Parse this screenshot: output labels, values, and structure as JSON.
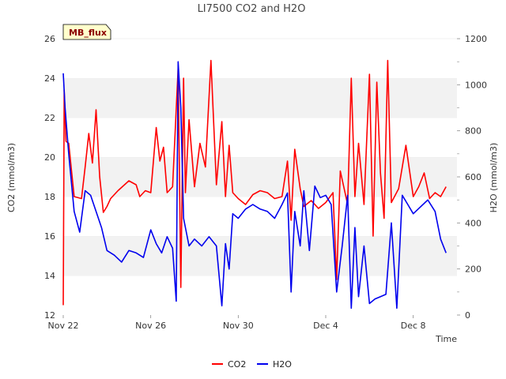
{
  "chart_data": {
    "type": "line",
    "title": "LI7500 CO2 and H2O",
    "badge": "MB_flux",
    "xlabel": "Time",
    "ylabel_left": "CO2 (mmol/m3)",
    "ylabel_right": "H2O (mmol/m3)",
    "x_range": [
      "2023-11-22",
      "2023-12-10"
    ],
    "ylim_left": [
      12,
      26
    ],
    "ylim_right": [
      0,
      1200
    ],
    "x_ticks": [
      {
        "date": "2023-11-22",
        "label": "Nov 22"
      },
      {
        "date": "2023-11-26",
        "label": "Nov 26"
      },
      {
        "date": "2023-11-30",
        "label": "Nov 30"
      },
      {
        "date": "2023-12-04",
        "label": "Dec 4"
      },
      {
        "date": "2023-12-08",
        "label": "Dec 8"
      }
    ],
    "y_ticks_left": [
      "12",
      "14",
      "16",
      "18",
      "20",
      "22",
      "24",
      "26"
    ],
    "y_ticks_right": [
      "0",
      "200",
      "400",
      "600",
      "800",
      "1000",
      "1200"
    ],
    "grid": "horizontal alternating bands",
    "legend_position": "bottom-center",
    "colors": {
      "CO2": "#ff0000",
      "H2O": "#0000ee",
      "band": "#f2f2f2",
      "badge_fill": "#ffffcc"
    },
    "series": [
      {
        "name": "CO2",
        "axis": "left",
        "x": [
          "2023-11-22T00:00",
          "2023-11-22T01:00",
          "2023-11-22T03:00",
          "2023-11-22T06:00",
          "2023-11-22T12:00",
          "2023-11-22T20:00",
          "2023-11-23T00:00",
          "2023-11-23T04:00",
          "2023-11-23T08:00",
          "2023-11-23T12:00",
          "2023-11-23T16:00",
          "2023-11-23T20:00",
          "2023-11-24T00:00",
          "2023-11-24T04:00",
          "2023-11-24T12:00",
          "2023-11-25T00:00",
          "2023-11-25T08:00",
          "2023-11-25T12:00",
          "2023-11-25T18:00",
          "2023-11-26T00:00",
          "2023-11-26T06:00",
          "2023-11-26T10:00",
          "2023-11-26T14:00",
          "2023-11-26T18:00",
          "2023-11-27T00:00",
          "2023-11-27T06:00",
          "2023-11-27T09:00",
          "2023-11-27T12:00",
          "2023-11-27T14:00",
          "2023-11-27T18:00",
          "2023-11-28T00:00",
          "2023-11-28T06:00",
          "2023-11-28T12:00",
          "2023-11-28T18:00",
          "2023-11-29T00:00",
          "2023-11-29T06:00",
          "2023-11-29T10:00",
          "2023-11-29T14:00",
          "2023-11-29T18:00",
          "2023-11-30T00:00",
          "2023-11-30T08:00",
          "2023-11-30T16:00",
          "2023-12-01T00:00",
          "2023-12-01T08:00",
          "2023-12-01T16:00",
          "2023-12-02T00:00",
          "2023-12-02T06:00",
          "2023-12-02T10:00",
          "2023-12-02T14:00",
          "2023-12-02T20:00",
          "2023-12-03T00:00",
          "2023-12-03T08:00",
          "2023-12-03T16:00",
          "2023-12-04T00:00",
          "2023-12-04T08:00",
          "2023-12-04T12:00",
          "2023-12-04T16:00",
          "2023-12-05T00:00",
          "2023-12-05T04:00",
          "2023-12-05T08:00",
          "2023-12-05T12:00",
          "2023-12-05T18:00",
          "2023-12-06T00:00",
          "2023-12-06T04:00",
          "2023-12-06T08:00",
          "2023-12-06T12:00",
          "2023-12-06T16:00",
          "2023-12-06T20:00",
          "2023-12-07T00:00",
          "2023-12-07T08:00",
          "2023-12-07T16:00",
          "2023-12-08T00:00",
          "2023-12-08T06:00",
          "2023-12-08T12:00",
          "2023-12-08T18:00",
          "2023-12-09T00:00",
          "2023-12-09T06:00",
          "2023-12-09T12:00"
        ],
        "values": [
          12.5,
          23.4,
          20.8,
          20.7,
          18.0,
          17.9,
          19.5,
          21.2,
          19.7,
          22.4,
          19.0,
          17.2,
          17.5,
          17.9,
          18.3,
          18.8,
          18.6,
          18.0,
          18.3,
          18.2,
          21.5,
          19.8,
          20.5,
          18.2,
          18.5,
          24.5,
          13.4,
          24.0,
          18.2,
          21.9,
          18.5,
          20.7,
          19.5,
          24.9,
          18.6,
          21.8,
          18.0,
          20.6,
          18.2,
          17.9,
          17.6,
          18.1,
          18.3,
          18.2,
          17.9,
          18.0,
          19.8,
          16.8,
          20.4,
          18.4,
          17.5,
          17.8,
          17.4,
          17.7,
          18.2,
          13.8,
          19.3,
          17.6,
          24.0,
          18.0,
          20.7,
          17.6,
          24.2,
          16.0,
          23.8,
          19.2,
          16.9,
          24.9,
          17.7,
          18.4,
          20.6,
          18.0,
          18.5,
          19.2,
          17.9,
          18.2,
          18.0,
          18.5
        ]
      },
      {
        "name": "H2O",
        "axis": "right",
        "x": [
          "2023-11-22T00:00",
          "2023-11-22T02:00",
          "2023-11-22T06:00",
          "2023-11-22T12:00",
          "2023-11-22T18:00",
          "2023-11-23T00:00",
          "2023-11-23T06:00",
          "2023-11-23T12:00",
          "2023-11-23T18:00",
          "2023-11-24T00:00",
          "2023-11-24T08:00",
          "2023-11-24T16:00",
          "2023-11-25T00:00",
          "2023-11-25T08:00",
          "2023-11-25T16:00",
          "2023-11-26T00:00",
          "2023-11-26T06:00",
          "2023-11-26T12:00",
          "2023-11-26T18:00",
          "2023-11-27T00:00",
          "2023-11-27T04:00",
          "2023-11-27T06:00",
          "2023-11-27T09:00",
          "2023-11-27T12:00",
          "2023-11-27T18:00",
          "2023-11-28T00:00",
          "2023-11-28T08:00",
          "2023-11-28T16:00",
          "2023-11-29T00:00",
          "2023-11-29T06:00",
          "2023-11-29T10:00",
          "2023-11-29T14:00",
          "2023-11-29T18:00",
          "2023-11-30T00:00",
          "2023-11-30T08:00",
          "2023-11-30T16:00",
          "2023-12-01T00:00",
          "2023-12-01T08:00",
          "2023-12-01T16:00",
          "2023-12-02T00:00",
          "2023-12-02T06:00",
          "2023-12-02T10:00",
          "2023-12-02T14:00",
          "2023-12-02T20:00",
          "2023-12-03T00:00",
          "2023-12-03T06:00",
          "2023-12-03T12:00",
          "2023-12-03T18:00",
          "2023-12-04T00:00",
          "2023-12-04T06:00",
          "2023-12-04T12:00",
          "2023-12-04T18:00",
          "2023-12-05T00:00",
          "2023-12-05T04:00",
          "2023-12-05T08:00",
          "2023-12-05T12:00",
          "2023-12-05T18:00",
          "2023-12-06T00:00",
          "2023-12-06T06:00",
          "2023-12-06T12:00",
          "2023-12-06T18:00",
          "2023-12-07T00:00",
          "2023-12-07T06:00",
          "2023-12-07T12:00",
          "2023-12-07T18:00",
          "2023-12-08T00:00",
          "2023-12-08T08:00",
          "2023-12-08T16:00",
          "2023-12-09T00:00",
          "2023-12-09T06:00",
          "2023-12-09T12:00"
        ],
        "values": [
          1050,
          900,
          700,
          450,
          360,
          540,
          520,
          450,
          380,
          280,
          260,
          230,
          280,
          270,
          250,
          370,
          310,
          270,
          340,
          290,
          60,
          1100,
          900,
          420,
          300,
          330,
          300,
          340,
          300,
          40,
          310,
          200,
          440,
          420,
          460,
          480,
          460,
          450,
          420,
          480,
          530,
          100,
          450,
          300,
          540,
          280,
          560,
          510,
          520,
          480,
          100,
          300,
          520,
          30,
          380,
          80,
          300,
          50,
          70,
          80,
          90,
          400,
          30,
          520,
          480,
          440,
          470,
          500,
          450,
          330,
          270
        ]
      }
    ]
  }
}
